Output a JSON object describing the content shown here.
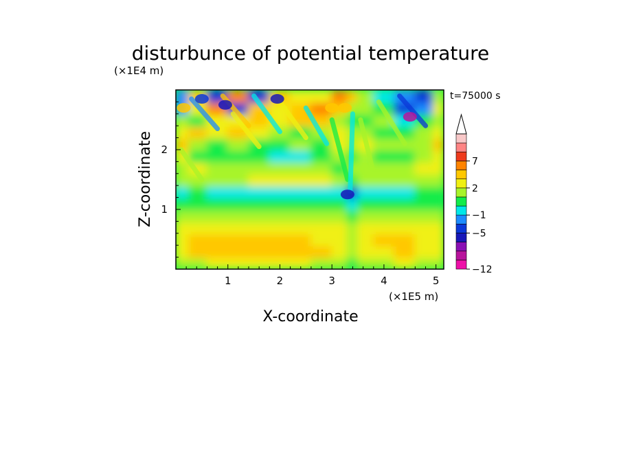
{
  "chart_data": {
    "type": "heatmap",
    "title": "disturbunce of potential temperature",
    "time_label": "t=75000 s",
    "xlabel": "X-coordinate",
    "ylabel": "Z-coordinate",
    "x_unit": "(×1E5 m)",
    "y_unit": "(×1E4 m)",
    "xlim": [
      0,
      5.15
    ],
    "ylim": [
      0,
      3.0
    ],
    "x_ticks": [
      1,
      2,
      3,
      4,
      5
    ],
    "y_ticks": [
      1,
      2
    ],
    "colorbar": {
      "levels": [
        -12,
        -11,
        -9,
        -7,
        -5,
        -3,
        -1,
        0,
        1,
        2,
        3,
        5,
        7,
        9,
        11
      ],
      "colors": [
        "#ee10a8",
        "#b8149c",
        "#8a10b4",
        "#1818b8",
        "#0a38d8",
        "#1c8cff",
        "#00e8e8",
        "#12ec4a",
        "#a8f42a",
        "#f0f012",
        "#ffc800",
        "#ff8400",
        "#ee3a1c",
        "#ff8484",
        "#f8c8c8"
      ],
      "extend": "max",
      "tick_labels": [
        "7",
        "2",
        "−1",
        "−5",
        "−12"
      ],
      "tick_values": [
        7,
        2,
        -1,
        -5,
        -12
      ]
    },
    "field_description_rows": {
      "z_values": [
        0.1,
        0.3,
        0.5,
        0.7,
        0.9,
        1.1,
        1.3,
        1.5,
        1.7,
        1.9,
        2.1,
        2.3,
        2.5,
        2.7,
        2.9
      ],
      "x_values": [
        0.1,
        0.4,
        0.8,
        1.2,
        1.6,
        2.0,
        2.4,
        2.8,
        3.2,
        3.4,
        3.6,
        4.0,
        4.4,
        4.8,
        5.1
      ],
      "values": [
        [
          1,
          1,
          2,
          2,
          2,
          2,
          2,
          1,
          1,
          0,
          1,
          1,
          2,
          1,
          1
        ],
        [
          2,
          3,
          3,
          3,
          3,
          3,
          3,
          3,
          2,
          1,
          2,
          2,
          3,
          2,
          2
        ],
        [
          2,
          3,
          3,
          3,
          3,
          3,
          3,
          2,
          2,
          1,
          2,
          3,
          3,
          2,
          2
        ],
        [
          2,
          2,
          2,
          2,
          2,
          2,
          2,
          2,
          2,
          1,
          2,
          2,
          2,
          2,
          2
        ],
        [
          1,
          1,
          1,
          1,
          1,
          1,
          1,
          1,
          1,
          0,
          1,
          1,
          1,
          1,
          1
        ],
        [
          0,
          0,
          0,
          0,
          0,
          0,
          0,
          0,
          0,
          -1,
          0,
          0,
          0,
          0,
          0
        ],
        [
          -1,
          0,
          -1,
          -1,
          -1,
          -1,
          -1,
          -1,
          -1,
          -5,
          -1,
          -1,
          -1,
          0,
          0
        ],
        [
          1,
          1,
          1,
          1,
          2,
          2,
          2,
          2,
          1,
          0,
          1,
          1,
          1,
          1,
          1
        ],
        [
          1,
          2,
          1,
          1,
          1,
          1,
          1,
          1,
          0,
          1,
          1,
          1,
          1,
          2,
          2
        ],
        [
          2,
          0,
          0,
          0,
          0,
          -1,
          -1,
          0,
          1,
          0,
          1,
          0,
          0,
          1,
          2
        ],
        [
          3,
          1,
          0,
          1,
          0,
          0,
          1,
          0,
          2,
          1,
          2,
          1,
          1,
          1,
          3
        ],
        [
          2,
          3,
          2,
          3,
          2,
          1,
          0,
          1,
          2,
          1,
          1,
          0,
          0,
          1,
          2
        ],
        [
          1,
          0,
          2,
          2,
          3,
          2,
          3,
          3,
          1,
          0,
          0,
          1,
          -1,
          0,
          1
        ],
        [
          -3,
          2,
          5,
          -5,
          3,
          2,
          3,
          5,
          3,
          1,
          1,
          0,
          -5,
          -3,
          2
        ],
        [
          -3,
          3,
          -5,
          5,
          -5,
          3,
          2,
          2,
          5,
          3,
          1,
          -1,
          -3,
          -5,
          1
        ]
      ]
    }
  }
}
